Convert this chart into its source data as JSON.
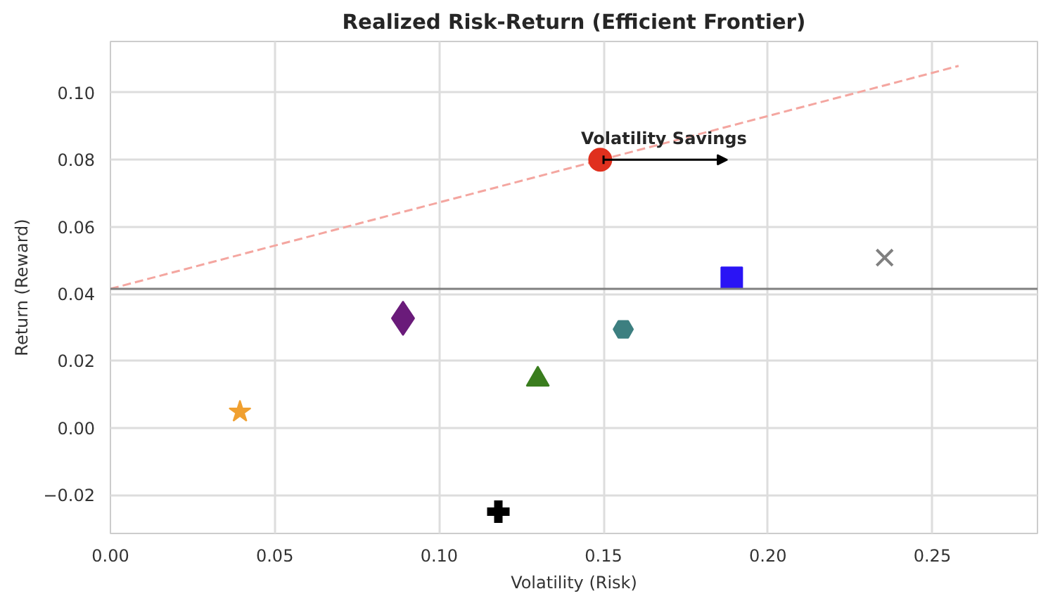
{
  "chart_data": {
    "type": "scatter",
    "title": "Realized Risk-Return (Efficient Frontier)",
    "xlabel": "Volatility (Risk)",
    "ylabel": "Return (Reward)",
    "xlim": [
      0,
      0.282
    ],
    "ylim": [
      -0.0315,
      0.1153
    ],
    "xticks": [
      {
        "value": 0,
        "label": "0.00"
      },
      {
        "value": 0.05,
        "label": "0.05"
      },
      {
        "value": 0.1,
        "label": "0.10"
      },
      {
        "value": 0.15,
        "label": "0.15"
      },
      {
        "value": 0.2,
        "label": "0.20"
      },
      {
        "value": 0.25,
        "label": "0.25"
      }
    ],
    "yticks": [
      {
        "value": -0.02,
        "label": "−0.02"
      },
      {
        "value": 0,
        "label": "0.00"
      },
      {
        "value": 0.02,
        "label": "0.02"
      },
      {
        "value": 0.04,
        "label": "0.04"
      },
      {
        "value": 0.06,
        "label": "0.06"
      },
      {
        "value": 0.08,
        "label": "0.08"
      },
      {
        "value": 0.1,
        "label": "0.10"
      }
    ],
    "grid": true,
    "series": [
      {
        "type": "line",
        "color": "#f4a6a0",
        "line_style": "dashed",
        "x": [
          0,
          0.258
        ],
        "values": [
          0.0415,
          0.108
        ]
      },
      {
        "color": "#f0a030",
        "marker": "star",
        "x": [
          0.0394
        ],
        "values": [
          0.0048
        ]
      },
      {
        "color": "#6a1b7a",
        "marker": "diamond",
        "x": [
          0.089
        ],
        "values": [
          0.0327
        ]
      },
      {
        "color": "#000000",
        "marker": "cross",
        "x": [
          0.118
        ],
        "values": [
          -0.025
        ]
      },
      {
        "color": "#3a7d1e",
        "marker": "triangle",
        "x": [
          0.13
        ],
        "values": [
          0.0145
        ]
      },
      {
        "color": "#e0301e",
        "marker": "circle",
        "x": [
          0.149
        ],
        "values": [
          0.08
        ]
      },
      {
        "color": "#3d7f80",
        "x": [
          0.156
        ],
        "values": [
          0.0294
        ]
      },
      {
        "color": "#2a14f5",
        "marker": "square",
        "x": [
          0.189
        ],
        "values": [
          0.0448
        ]
      },
      {
        "color": "#808080",
        "marker": "x",
        "x": [
          0.2355
        ],
        "values": [
          0.0508
        ]
      }
    ],
    "ref_lines": [
      {
        "axis": "y",
        "value": 0.0415,
        "color": "#808080"
      }
    ],
    "annotations": [
      {
        "text": "Volatility Savings",
        "x": 0.15,
        "y": 0.08
      }
    ]
  }
}
